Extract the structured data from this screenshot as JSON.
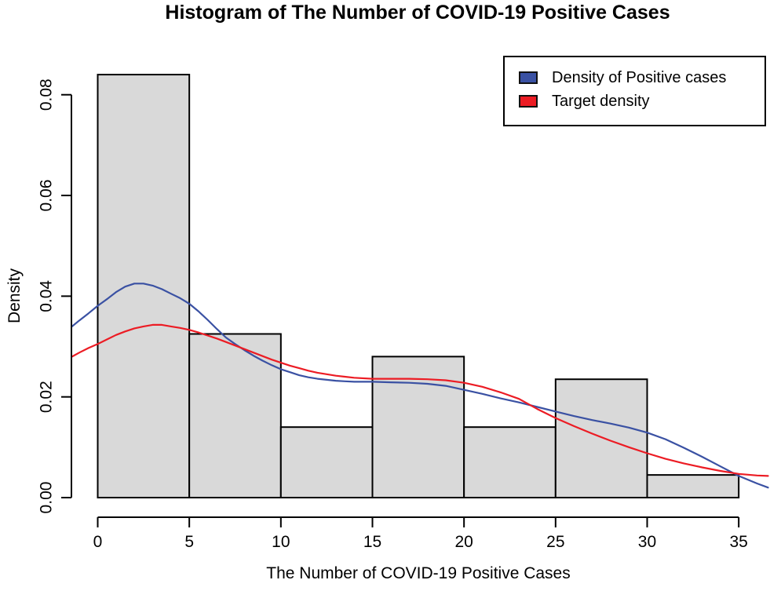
{
  "chart_data": {
    "type": "bar",
    "subtype": "histogram-with-density-curves",
    "title": "Histogram of The Number of COVID-19 Positive Cases",
    "xlabel": "The Number of COVID-19 Positive Cases",
    "ylabel": "Density",
    "xlim": [
      -1.5,
      36.7
    ],
    "ylim": [
      0,
      0.084
    ],
    "x_ticks": [
      0,
      5,
      10,
      15,
      20,
      25,
      30,
      35
    ],
    "x_tick_labels": [
      "0",
      "5",
      "10",
      "15",
      "20",
      "25",
      "30",
      "35"
    ],
    "y_ticks": [
      0.0,
      0.02,
      0.04,
      0.06,
      0.08
    ],
    "y_tick_labels": [
      "0.00",
      "0.02",
      "0.04",
      "0.06",
      "0.08"
    ],
    "grid": "off",
    "bar_fill": "#d9d9d9",
    "bar_edge": "#000000",
    "bins": [
      {
        "from": 0,
        "to": 5,
        "density": 0.084
      },
      {
        "from": 5,
        "to": 10,
        "density": 0.0325
      },
      {
        "from": 10,
        "to": 15,
        "density": 0.014
      },
      {
        "from": 15,
        "to": 20,
        "density": 0.028
      },
      {
        "from": 20,
        "to": 25,
        "density": 0.014
      },
      {
        "from": 25,
        "to": 30,
        "density": 0.0235
      },
      {
        "from": 30,
        "to": 35,
        "density": 0.0045
      }
    ],
    "series": [
      {
        "name": "Density of Positive cases",
        "color": "#3a51a3",
        "points": [
          [
            -1.4,
            0.034
          ],
          [
            -1,
            0.0352
          ],
          [
            -0.5,
            0.0366
          ],
          [
            0,
            0.0381
          ],
          [
            0.5,
            0.0394
          ],
          [
            1,
            0.0408
          ],
          [
            1.5,
            0.0419
          ],
          [
            2,
            0.0425
          ],
          [
            2.5,
            0.0425
          ],
          [
            3,
            0.0421
          ],
          [
            3.5,
            0.0414
          ],
          [
            4,
            0.0405
          ],
          [
            4.5,
            0.0396
          ],
          [
            5,
            0.0385
          ],
          [
            5.5,
            0.037
          ],
          [
            6,
            0.0353
          ],
          [
            6.5,
            0.0335
          ],
          [
            7,
            0.0318
          ],
          [
            7.5,
            0.0305
          ],
          [
            8,
            0.0293
          ],
          [
            8.5,
            0.0282
          ],
          [
            9,
            0.0272
          ],
          [
            9.5,
            0.0263
          ],
          [
            10,
            0.0255
          ],
          [
            10.5,
            0.0249
          ],
          [
            11,
            0.0243
          ],
          [
            11.5,
            0.0239
          ],
          [
            12,
            0.0236
          ],
          [
            12.5,
            0.0234
          ],
          [
            13,
            0.0232
          ],
          [
            13.5,
            0.0231
          ],
          [
            14,
            0.023
          ],
          [
            15,
            0.023
          ],
          [
            16,
            0.0229
          ],
          [
            17,
            0.0228
          ],
          [
            18,
            0.0226
          ],
          [
            19,
            0.0222
          ],
          [
            20,
            0.0214
          ],
          [
            21,
            0.0206
          ],
          [
            22,
            0.0197
          ],
          [
            23,
            0.0189
          ],
          [
            24,
            0.018
          ],
          [
            25,
            0.0171
          ],
          [
            26,
            0.0162
          ],
          [
            27,
            0.0154
          ],
          [
            28,
            0.0147
          ],
          [
            29,
            0.0139
          ],
          [
            30,
            0.0129
          ],
          [
            31,
            0.0116
          ],
          [
            32,
            0.0099
          ],
          [
            33,
            0.0081
          ],
          [
            34,
            0.0062
          ],
          [
            35,
            0.0043
          ],
          [
            36,
            0.0028
          ],
          [
            36.6,
            0.002
          ]
        ]
      },
      {
        "name": "Target density",
        "color": "#ec1c24",
        "points": [
          [
            -1.4,
            0.028
          ],
          [
            -1,
            0.0288
          ],
          [
            -0.5,
            0.0297
          ],
          [
            0,
            0.0305
          ],
          [
            0.5,
            0.0314
          ],
          [
            1,
            0.0323
          ],
          [
            1.5,
            0.033
          ],
          [
            2,
            0.0336
          ],
          [
            2.5,
            0.034
          ],
          [
            3,
            0.0343
          ],
          [
            3.5,
            0.0343
          ],
          [
            4,
            0.034
          ],
          [
            4.5,
            0.0337
          ],
          [
            5,
            0.0333
          ],
          [
            5.5,
            0.0328
          ],
          [
            6,
            0.0322
          ],
          [
            6.5,
            0.0316
          ],
          [
            7,
            0.0309
          ],
          [
            7.5,
            0.0302
          ],
          [
            8,
            0.0295
          ],
          [
            8.5,
            0.0288
          ],
          [
            9,
            0.0281
          ],
          [
            9.5,
            0.0274
          ],
          [
            10,
            0.0268
          ],
          [
            10.5,
            0.0262
          ],
          [
            11,
            0.0257
          ],
          [
            11.5,
            0.0252
          ],
          [
            12,
            0.0248
          ],
          [
            12.5,
            0.0245
          ],
          [
            13,
            0.0242
          ],
          [
            13.5,
            0.024
          ],
          [
            14,
            0.0238
          ],
          [
            15,
            0.0236
          ],
          [
            16,
            0.0236
          ],
          [
            17,
            0.0236
          ],
          [
            18,
            0.0235
          ],
          [
            19,
            0.0233
          ],
          [
            20,
            0.0228
          ],
          [
            21,
            0.022
          ],
          [
            22,
            0.0209
          ],
          [
            23,
            0.0196
          ],
          [
            24,
            0.0176
          ],
          [
            25,
            0.0158
          ],
          [
            26,
            0.0142
          ],
          [
            27,
            0.0127
          ],
          [
            28,
            0.0113
          ],
          [
            29,
            0.01
          ],
          [
            30,
            0.0088
          ],
          [
            31,
            0.0077
          ],
          [
            32,
            0.0068
          ],
          [
            33,
            0.006
          ],
          [
            34,
            0.0053
          ],
          [
            35,
            0.0047
          ],
          [
            36,
            0.0044
          ],
          [
            36.6,
            0.0043
          ]
        ]
      }
    ],
    "legend": {
      "position": "top-right",
      "items": [
        {
          "label": "Density of Positive cases",
          "color": "#3a51a3"
        },
        {
          "label": "Target density",
          "color": "#ec1c24"
        }
      ]
    }
  }
}
